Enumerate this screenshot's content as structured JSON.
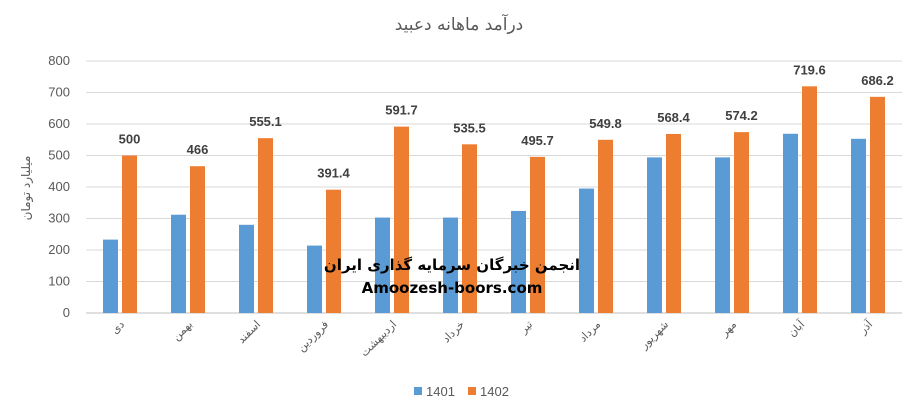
{
  "chart_data": {
    "type": "bar",
    "title": "درآمد ماهانه دعبید",
    "ylabel": "میلیارد تومان",
    "xlabel": "",
    "ylim": [
      0,
      800
    ],
    "yticks": [
      0,
      100,
      200,
      300,
      400,
      500,
      600,
      700,
      800
    ],
    "grid": true,
    "legend_position": "bottom",
    "categories": [
      "دی",
      "بهمن",
      "اسفند",
      "فروردین",
      "اردیبهشت",
      "خرداد",
      "تیر",
      "مرداد",
      "شهریور",
      "مهر",
      "آبان",
      "آذر"
    ],
    "series": [
      {
        "name": "1401",
        "color": "#5B9BD5",
        "values": [
          233,
          312,
          280,
          214,
          303,
          303,
          324,
          395,
          494,
          494,
          569,
          553
        ]
      },
      {
        "name": "1402",
        "color": "#ED7D31",
        "values": [
          500,
          466,
          555.1,
          391.4,
          591.7,
          535.5,
          495.7,
          549.8,
          568.4,
          574.2,
          719.6,
          686.2
        ]
      }
    ],
    "data_labels": [
      "500",
      "466",
      "555.1",
      "391.4",
      "591.7",
      "535.5",
      "495.7",
      "549.8",
      "568.4",
      "574.2",
      "719.6",
      "686.2"
    ]
  },
  "watermark": {
    "line1": "انجمن خبرگان سرمایه گذاری ایران",
    "line2": "Amoozesh-boors.com"
  }
}
